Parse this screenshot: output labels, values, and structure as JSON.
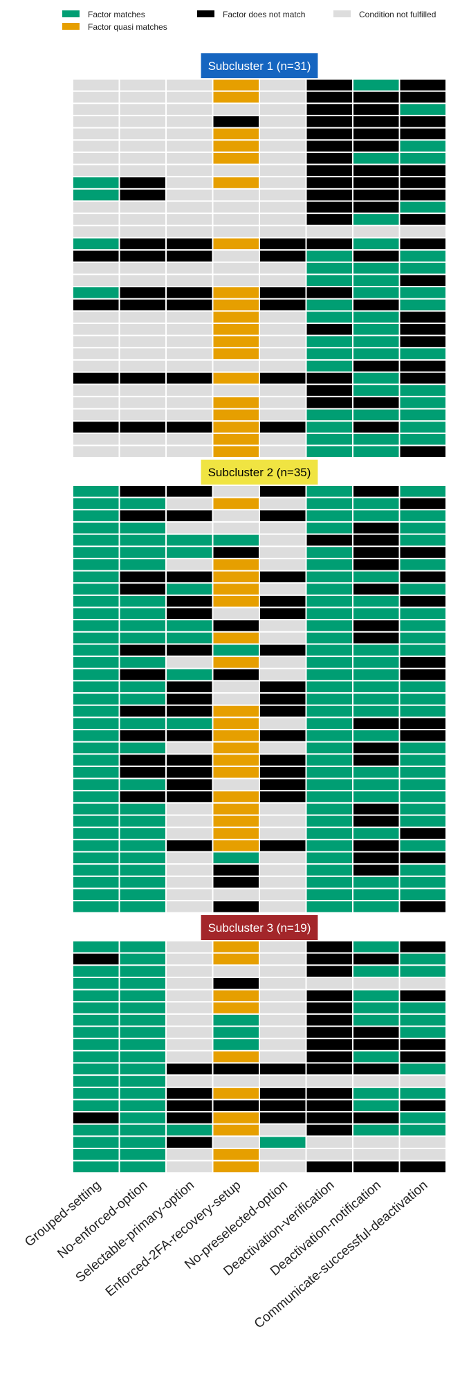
{
  "legend": [
    {
      "key": "G",
      "label": "Factor matches",
      "color": "#009E73"
    },
    {
      "key": "B",
      "label": "Factor does not match",
      "color": "#000000"
    },
    {
      "key": "N",
      "label": "Condition not fulfilled",
      "color": "#DDDDDD"
    },
    {
      "key": "O",
      "label": "Factor quasi matches",
      "color": "#E69F00"
    }
  ],
  "chart_data": {
    "type": "heatmap",
    "columns": [
      "Grouped-setting",
      "No-enforced-option",
      "Selectable-primary-option",
      "Enforced-2FA-recovery-setup",
      "No-preselected-option",
      "Deactivation-verification",
      "Deactivation-notification",
      "Communicate-successful-deactivation"
    ],
    "subclusters": [
      {
        "title": "Subcluster 1 (n=31)",
        "color": "#1565C0",
        "text_color": "#FFFFFF",
        "rows": [
          "NNNONBGB",
          "NNNONBBB",
          "NNNNNBBG",
          "NNNBNBBB",
          "NNNONBBB",
          "NNNONBBG",
          "NNNONBGG",
          "NNNNNBBB",
          "GBNONBBB",
          "GBNNNBBB",
          "NNNNNBBG",
          "NNNNNBGB",
          "NNNNNNNN",
          "GBBOBBGB",
          "BBBNBGBG",
          "NNNNNGGG",
          "NNNNNGGB",
          "GBBOBBGG",
          "BBBOBGBG",
          "NNNONGGB",
          "NNNONBGB",
          "NNNONGGB",
          "NNNONGGG",
          "NNNNNGBB",
          "BBBOBBGB",
          "NNNNNBGG",
          "NNNONBBG",
          "NNNONGGG",
          "BBBOBGBG",
          "NNNONGGG",
          "NNNONGGB"
        ]
      },
      {
        "title": "Subcluster 2 (n=35)",
        "color": "#F0E442",
        "text_color": "#000000",
        "rows": [
          "GBBNBGBG",
          "GGNONGGB",
          "GBBNBGGG",
          "GGNNNGBG",
          "GGGGNBBG",
          "GGGBNGBB",
          "GGNONGBG",
          "GBBOBGGB",
          "GBGONGBG",
          "GGBOBGGB",
          "GGBNBGGG",
          "GGGBNGBG",
          "GGGONGBG",
          "GBBGBGGG",
          "GGNONGGB",
          "GBGBNGGB",
          "GGBNBGGG",
          "GGBNBGGG",
          "GBBOBGGG",
          "GGGONGBB",
          "GBBOBGGB",
          "GGNONGBG",
          "GBBOBGBG",
          "GBBOBGGG",
          "GGBNBGGG",
          "GBBOBGGG",
          "GGNONGBG",
          "GGNONGBG",
          "GGNONGGB",
          "GGBOBGBG",
          "GGNGNGBB",
          "GGNBNGBG",
          "GGNBNGGG",
          "GGNNNGGG",
          "GGNBNGGB"
        ]
      },
      {
        "title": "Subcluster 3 (n=19)",
        "color": "#A3262A",
        "text_color": "#FFFFFF",
        "rows": [
          "GGNONBGB",
          "BGNONBBG",
          "GGNNNBGG",
          "GGNBNNNN",
          "GGNONBGB",
          "GGNONBGG",
          "GGNGNBGG",
          "GGNGNBBG",
          "GGNGNBBB",
          "GGNONBGB",
          "GGBBBBBG",
          "GGNNNNNN",
          "GGBOBBGG",
          "GGBBBBGB",
          "BGBOBBBG",
          "GGGONBGG",
          "GGBNGNNN",
          "GGNONNNN",
          "GGNONBBB"
        ]
      }
    ]
  }
}
